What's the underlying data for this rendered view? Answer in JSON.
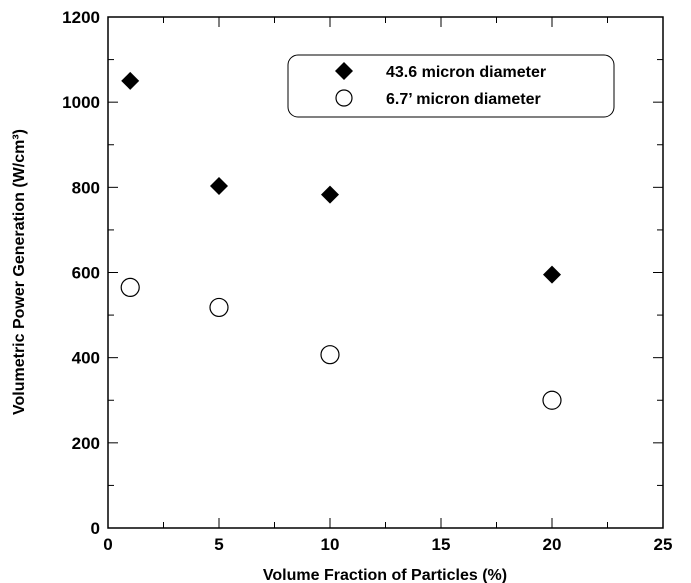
{
  "chart_data": {
    "type": "scatter",
    "xlabel": "Volume Fraction of Particles (%)",
    "ylabel": "Volumetric Power Generation (W/cm³)",
    "xlim": [
      0,
      25
    ],
    "ylim": [
      0,
      1200
    ],
    "xticks": [
      0,
      5,
      10,
      15,
      20,
      25
    ],
    "yticks": [
      0,
      200,
      400,
      600,
      800,
      1000,
      1200
    ],
    "legend_position": "top-right",
    "grid": false,
    "series": [
      {
        "name": "43.6 micron diameter",
        "marker": "filled-diamond",
        "color": "#000000",
        "points": [
          {
            "x": 1,
            "y": 1050
          },
          {
            "x": 5,
            "y": 803
          },
          {
            "x": 10,
            "y": 783
          },
          {
            "x": 20,
            "y": 595
          }
        ]
      },
      {
        "name": "6.7’ micron diameter",
        "marker": "open-circle",
        "color": "#000000",
        "points": [
          {
            "x": 1,
            "y": 565
          },
          {
            "x": 5,
            "y": 518
          },
          {
            "x": 10,
            "y": 407
          },
          {
            "x": 20,
            "y": 300
          }
        ]
      }
    ]
  }
}
